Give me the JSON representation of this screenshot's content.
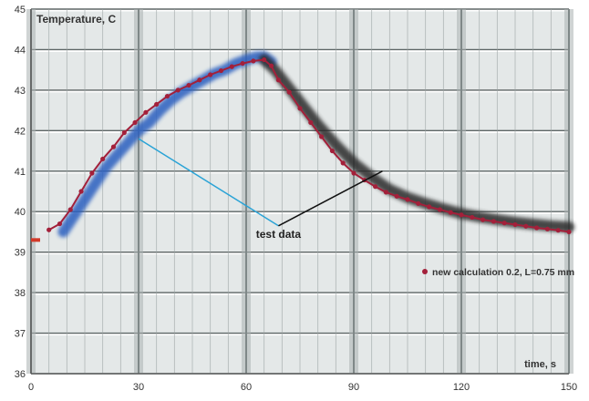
{
  "chart_data": {
    "type": "line",
    "ylabel": "Temperature, C",
    "xlabel": "time, s",
    "xlim": [
      0,
      150
    ],
    "ylim": [
      36,
      45
    ],
    "x_ticks": [
      0,
      30,
      60,
      90,
      120,
      150
    ],
    "y_ticks": [
      36,
      37,
      38,
      39,
      40,
      41,
      42,
      43,
      44,
      45
    ],
    "grid": true,
    "annotation": "test data",
    "legend_position": "right",
    "colors": {
      "plot_bg": "#e4e8e8",
      "grid_light": "#ffffff",
      "grid_dark": "#5e6666",
      "test_rise": "#2c5fbf",
      "test_decay": "#2a2a2a",
      "calc": "#a3203a",
      "arrow_blue": "#2aa3d6",
      "arrow_black": "#111111",
      "axis_text": "#333333"
    },
    "series": [
      {
        "name": "",
        "style": "band",
        "points": [
          [
            9,
            39.5
          ],
          [
            12,
            39.9
          ],
          [
            15,
            40.3
          ],
          [
            18,
            40.7
          ],
          [
            21,
            41.1
          ],
          [
            24,
            41.4
          ],
          [
            27,
            41.7
          ],
          [
            30,
            42.0
          ],
          [
            33,
            42.2
          ],
          [
            36,
            42.5
          ],
          [
            39,
            42.75
          ],
          [
            42,
            42.95
          ],
          [
            45,
            43.1
          ],
          [
            48,
            43.25
          ],
          [
            51,
            43.4
          ],
          [
            54,
            43.5
          ],
          [
            57,
            43.65
          ],
          [
            60,
            43.75
          ],
          [
            63,
            43.82
          ],
          [
            65,
            43.82
          ],
          [
            67,
            43.7
          ]
        ]
      },
      {
        "name": "",
        "style": "band",
        "points": [
          [
            65,
            43.75
          ],
          [
            68,
            43.5
          ],
          [
            72,
            43.05
          ],
          [
            76,
            42.6
          ],
          [
            80,
            42.15
          ],
          [
            85,
            41.65
          ],
          [
            90,
            41.2
          ],
          [
            95,
            40.85
          ],
          [
            100,
            40.55
          ],
          [
            105,
            40.35
          ],
          [
            110,
            40.2
          ],
          [
            115,
            40.07
          ],
          [
            120,
            39.95
          ],
          [
            125,
            39.87
          ],
          [
            130,
            39.8
          ],
          [
            135,
            39.74
          ],
          [
            140,
            39.69
          ],
          [
            145,
            39.65
          ],
          [
            150,
            39.62
          ]
        ]
      },
      {
        "name": "new calculation 0.2, L=0.75 mm",
        "style": "dots",
        "points": [
          [
            5,
            39.55
          ],
          [
            8,
            39.7
          ],
          [
            11,
            40.05
          ],
          [
            14,
            40.5
          ],
          [
            17,
            40.95
          ],
          [
            20,
            41.3
          ],
          [
            23,
            41.6
          ],
          [
            26,
            41.95
          ],
          [
            29,
            42.2
          ],
          [
            32,
            42.45
          ],
          [
            35,
            42.65
          ],
          [
            38,
            42.85
          ],
          [
            41,
            43.0
          ],
          [
            44,
            43.12
          ],
          [
            47,
            43.25
          ],
          [
            50,
            43.38
          ],
          [
            53,
            43.48
          ],
          [
            56,
            43.58
          ],
          [
            59,
            43.66
          ],
          [
            62,
            43.72
          ],
          [
            65,
            43.75
          ],
          [
            67,
            43.6
          ],
          [
            69,
            43.25
          ],
          [
            72,
            42.95
          ],
          [
            75,
            42.55
          ],
          [
            78,
            42.2
          ],
          [
            81,
            41.85
          ],
          [
            84,
            41.5
          ],
          [
            87,
            41.2
          ],
          [
            90,
            40.95
          ],
          [
            93,
            40.78
          ],
          [
            96,
            40.62
          ],
          [
            99,
            40.48
          ],
          [
            102,
            40.38
          ],
          [
            105,
            40.3
          ],
          [
            108,
            40.2
          ],
          [
            111,
            40.12
          ],
          [
            114,
            40.05
          ],
          [
            117,
            39.98
          ],
          [
            120,
            39.92
          ],
          [
            123,
            39.86
          ],
          [
            126,
            39.8
          ],
          [
            129,
            39.76
          ],
          [
            132,
            39.72
          ],
          [
            135,
            39.68
          ],
          [
            138,
            39.64
          ],
          [
            141,
            39.6
          ],
          [
            144,
            39.57
          ],
          [
            147,
            39.54
          ],
          [
            150,
            39.5
          ]
        ]
      }
    ],
    "arrows": [
      {
        "color": "arrow_blue",
        "from": [
          69,
          39.65
        ],
        "to": [
          30,
          41.8
        ]
      },
      {
        "color": "arrow_black",
        "from": [
          69,
          39.65
        ],
        "to": [
          98,
          41.0
        ]
      }
    ],
    "label_anchor": [
      69,
      39.35
    ],
    "start_marker": [
      0,
      39.3
    ]
  }
}
